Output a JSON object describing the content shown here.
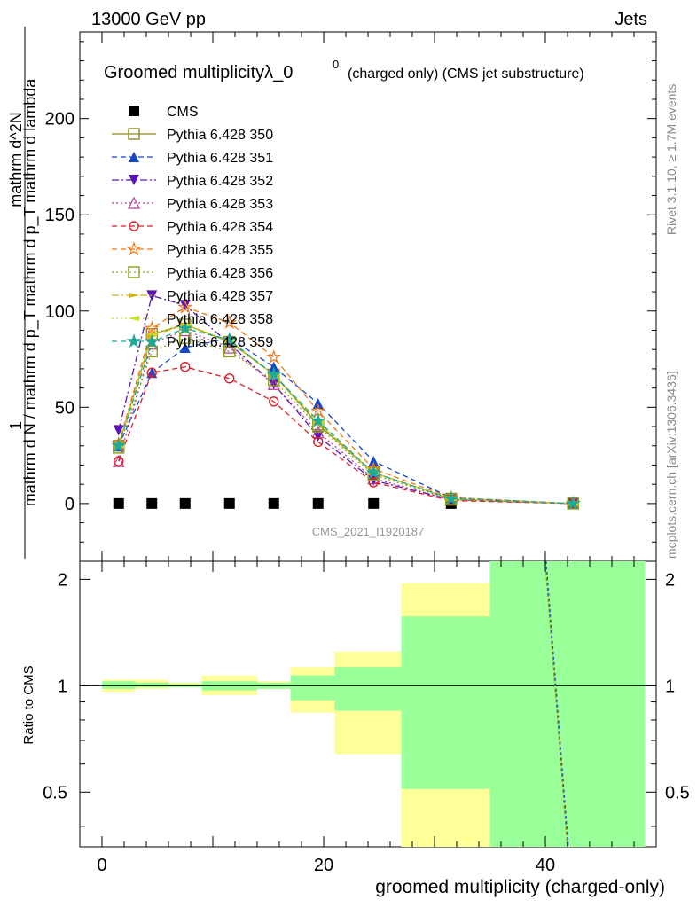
{
  "header": {
    "left": "13000 GeV pp",
    "right": "Jets"
  },
  "side_labels": {
    "rivet": "Rivet 3.1.10, ≥ 1.7M events",
    "mcplots": "mcplots.cern.ch [arXiv:1306.3436]"
  },
  "title": {
    "main": "Groomed multiplicityλ_0",
    "sup": "0",
    "sub": "(charged only) (CMS jet substructure)"
  },
  "watermark": "CMS_2021_I1920187",
  "chart_data": [
    {
      "type": "line",
      "panel": "main",
      "ylabel_top": "1",
      "ylabel_bottom": "mathrm d N / mathrm d p_T mathrm d p_T mathrm d lambda",
      "ylabel_num": "mathrm d^2N",
      "ylim": [
        -30,
        245
      ],
      "xlim": [
        -2,
        50
      ],
      "yticks": [
        0,
        50,
        100,
        150,
        200
      ],
      "legend_position": "top-left",
      "x": [
        1.5,
        4.5,
        7.5,
        11.5,
        15.5,
        19.5,
        24.5,
        31.5,
        42.5
      ],
      "series": [
        {
          "name": "CMS",
          "color": "#000000",
          "marker": "square-filled",
          "dash": "none",
          "values": [
            0,
            0,
            0,
            0,
            0,
            0,
            0,
            0,
            null
          ]
        },
        {
          "name": "Pythia 6.428 350",
          "color": "#8c8c1e",
          "marker": "square-open",
          "dash": "solid",
          "values": [
            30,
            88,
            93,
            84,
            67,
            41,
            16,
            2.5,
            0
          ]
        },
        {
          "name": "Pythia 6.428 351",
          "color": "#1446c8",
          "marker": "triangle-up-filled",
          "dash": "dashed",
          "values": [
            30,
            68,
            81,
            86,
            71,
            52,
            22,
            3,
            0
          ]
        },
        {
          "name": "Pythia 6.428 352",
          "color": "#5a14b4",
          "marker": "triangle-down-filled",
          "dash": "dashdot",
          "values": [
            38,
            108,
            103,
            83,
            62,
            35,
            12,
            2,
            0
          ]
        },
        {
          "name": "Pythia 6.428 353",
          "color": "#b43c96",
          "marker": "triangle-up-open",
          "dash": "dotted",
          "values": [
            22,
            83,
            90,
            81,
            62,
            37,
            13,
            2,
            0
          ]
        },
        {
          "name": "Pythia 6.428 354",
          "color": "#dc1e28",
          "marker": "circle-open",
          "dash": "dashed",
          "values": [
            22,
            68,
            71,
            65,
            53,
            32,
            11,
            1.5,
            0
          ]
        },
        {
          "name": "Pythia 6.428 355",
          "color": "#f07814",
          "marker": "star-open",
          "dash": "dashed",
          "values": [
            31,
            91,
            102,
            94,
            76,
            48,
            18,
            3,
            0
          ]
        },
        {
          "name": "Pythia 6.428 356",
          "color": "#8ca01e",
          "marker": "square-open",
          "dash": "dotted",
          "values": [
            29,
            79,
            86,
            79,
            64,
            40,
            15,
            2,
            0
          ]
        },
        {
          "name": "Pythia 6.428 357",
          "color": "#d2b414",
          "marker": "tri-right",
          "dash": "dashdot",
          "values": [
            30,
            87,
            93,
            84,
            67,
            42,
            16,
            2.5,
            0
          ]
        },
        {
          "name": "Pythia 6.428 358",
          "color": "#c8dc28",
          "marker": "tri-left",
          "dash": "dotted",
          "values": [
            30,
            88,
            93,
            85,
            67,
            42,
            16,
            2.5,
            0
          ]
        },
        {
          "name": "Pythia 6.428 359",
          "color": "#1eaa96",
          "marker": "star-filled",
          "dash": "dashed",
          "values": [
            30,
            84,
            91,
            85,
            67,
            43,
            16,
            2.5,
            0
          ]
        }
      ]
    },
    {
      "type": "line",
      "panel": "ratio",
      "ylabel": "Ratio to CMS",
      "xlabel": "groomed multiplicity (charged-only)",
      "ylim": [
        0.35,
        2.25
      ],
      "xlim": [
        -2,
        50
      ],
      "xticks": [
        0,
        20,
        40
      ],
      "yticks": [
        0.5,
        1,
        2
      ],
      "bins": [
        {
          "x0": 0,
          "x1": 3,
          "inner": [
            0.98,
            1.03
          ],
          "outer": [
            0.96,
            1.04
          ]
        },
        {
          "x0": 3,
          "x1": 6,
          "inner": [
            0.99,
            1.02
          ],
          "outer": [
            0.98,
            1.04
          ]
        },
        {
          "x0": 6,
          "x1": 9,
          "inner": [
            0.99,
            1.01
          ],
          "outer": [
            0.99,
            1.02
          ]
        },
        {
          "x0": 9,
          "x1": 14,
          "inner": [
            0.97,
            1.03
          ],
          "outer": [
            0.94,
            1.07
          ]
        },
        {
          "x0": 14,
          "x1": 17,
          "inner": [
            0.98,
            1.02
          ],
          "outer": [
            0.98,
            1.03
          ]
        },
        {
          "x0": 17,
          "x1": 21,
          "inner": [
            0.91,
            1.07
          ],
          "outer": [
            0.84,
            1.13
          ]
        },
        {
          "x0": 21,
          "x1": 27,
          "inner": [
            0.85,
            1.13
          ],
          "outer": [
            0.64,
            1.25
          ]
        },
        {
          "x0": 27,
          "x1": 35,
          "inner": [
            0.51,
            1.57
          ],
          "outer": [
            0.35,
            1.95
          ]
        },
        {
          "x0": 35,
          "x1": 49,
          "inner": [
            0.35,
            2.25
          ],
          "outer": [
            0.35,
            2.25
          ]
        }
      ],
      "ratio_line": {
        "x": [
          40.0,
          42.0
        ],
        "y": [
          2.25,
          0.35
        ]
      }
    }
  ]
}
